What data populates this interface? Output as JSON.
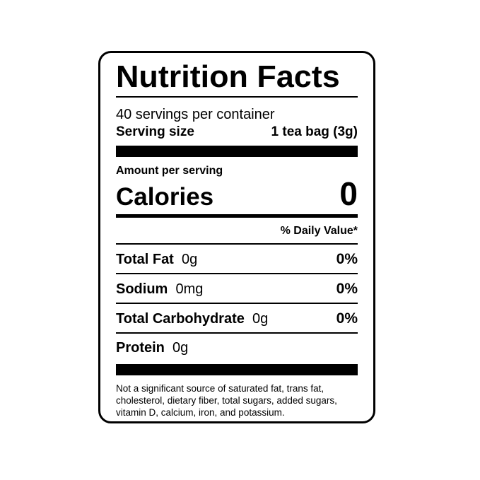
{
  "title": "Nutrition Facts",
  "servings": "40 servings per container",
  "serving_size_label": "Serving size",
  "serving_size_value": "1 tea bag (3g)",
  "amount_per_serving": "Amount per serving",
  "calories_label": "Calories",
  "calories_value": "0",
  "daily_value_header": "% Daily Value*",
  "nutrients": [
    {
      "name": "Total Fat",
      "amount": "0g",
      "dv": "0%"
    },
    {
      "name": "Sodium",
      "amount": "0mg",
      "dv": "0%"
    },
    {
      "name": "Total Carbohydrate",
      "amount": "0g",
      "dv": "0%"
    },
    {
      "name": "Protein",
      "amount": "0g",
      "dv": ""
    }
  ],
  "footnote": "Not a significant source of saturated fat, trans fat, cholesterol, dietary fiber, total sugars, added sugars, vitamin D, calcium, iron, and potassium."
}
